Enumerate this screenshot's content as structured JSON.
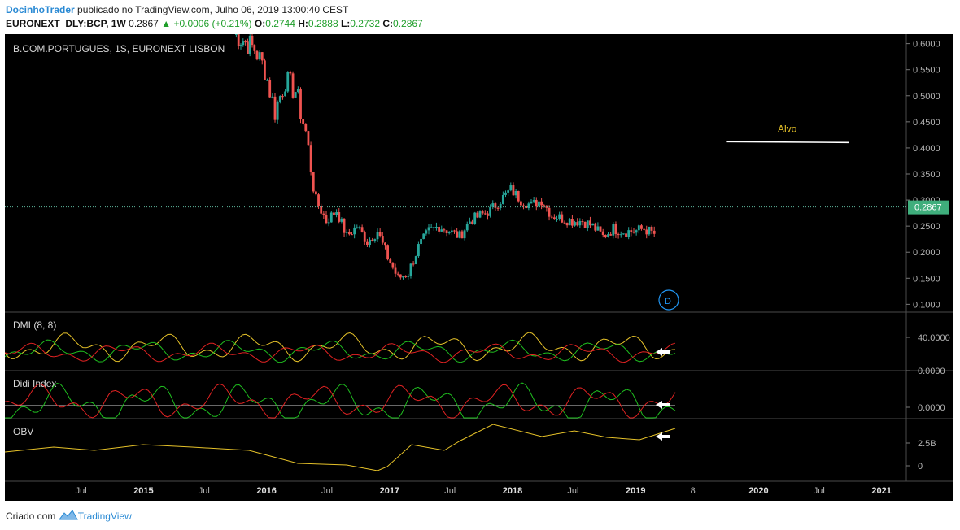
{
  "header": {
    "author": "DocinhoTrader",
    "published": "publicado no TradingView.com, Julho 06, 2019 13:00:40 CEST",
    "symbol": "EURONEXT_DLY:BCP, 1W",
    "last": "0.2867",
    "change": "+0.0006 (+0.21%)",
    "o_label": "O:",
    "o": "0.2744",
    "h_label": "H:",
    "h": "0.2888",
    "l_label": "L:",
    "l": "0.2732",
    "c_label": "C:",
    "c": "0.2867"
  },
  "footer": {
    "created_with": "Criado com",
    "brand": "TradingView"
  },
  "colors": {
    "up": "#26a69a",
    "down": "#ef5350",
    "yellow": "#e6c229",
    "green": "#1fbf1f",
    "red": "#d11",
    "blue": "#2196f3",
    "axis_text": "#b5b5b5",
    "price_tag": "#3fae7c"
  },
  "chart_data": {
    "type": "candlestick",
    "title": "B.COM.PORTUGUES, 1S, EURONEXT LISBON",
    "x_ticks": [
      "Jul",
      "2015",
      "Jul",
      "2016",
      "Jul",
      "2017",
      "Jul",
      "2018",
      "Jul",
      "2019",
      "8",
      "2020",
      "Jul",
      "2021"
    ],
    "price_axis": {
      "ticks": [
        "0.6000",
        "0.5500",
        "0.5000",
        "0.4500",
        "0.4000",
        "0.3500",
        "0.3000",
        "0.2500",
        "0.2000",
        "0.1500",
        "0.1000"
      ],
      "range": [
        0.085,
        0.615
      ]
    },
    "last_price": "0.2867",
    "price_path": [
      [
        "2015-10",
        0.62
      ],
      [
        "2015-12",
        0.59
      ],
      [
        "2016-01",
        0.55
      ],
      [
        "2016-02",
        0.47
      ],
      [
        "2016-03",
        0.53
      ],
      [
        "2016-04",
        0.51
      ],
      [
        "2016-05",
        0.43
      ],
      [
        "2016-06",
        0.3
      ],
      [
        "2016-07",
        0.26
      ],
      [
        "2016-08",
        0.28
      ],
      [
        "2016-09",
        0.23
      ],
      [
        "2016-10",
        0.25
      ],
      [
        "2016-11",
        0.22
      ],
      [
        "2016-12",
        0.24
      ],
      [
        "2017-01",
        0.19
      ],
      [
        "2017-02",
        0.15
      ],
      [
        "2017-03",
        0.16
      ],
      [
        "2017-04",
        0.21
      ],
      [
        "2017-05",
        0.24
      ],
      [
        "2017-06",
        0.25
      ],
      [
        "2017-07",
        0.24
      ],
      [
        "2017-08",
        0.23
      ],
      [
        "2017-09",
        0.26
      ],
      [
        "2017-10",
        0.27
      ],
      [
        "2017-11",
        0.28
      ],
      [
        "2017-12",
        0.3
      ],
      [
        "2018-01",
        0.32
      ],
      [
        "2018-02",
        0.3
      ],
      [
        "2018-03",
        0.29
      ],
      [
        "2018-04",
        0.3
      ],
      [
        "2018-05",
        0.27
      ],
      [
        "2018-06",
        0.265
      ],
      [
        "2018-07",
        0.26
      ],
      [
        "2018-08",
        0.26
      ],
      [
        "2018-09",
        0.25
      ],
      [
        "2018-10",
        0.23
      ],
      [
        "2018-11",
        0.245
      ],
      [
        "2018-12",
        0.24
      ],
      [
        "2019-01",
        0.24
      ],
      [
        "2019-02",
        0.245
      ],
      [
        "2019-03",
        0.235
      ],
      [
        "2019-04",
        0.25
      ],
      [
        "2019-05",
        0.255
      ],
      [
        "2019-06",
        0.265
      ],
      [
        "2019-07",
        0.2867
      ]
    ],
    "annotations": [
      {
        "text": "Alvo",
        "price": 0.415,
        "from": "2019-10",
        "to": "2020-10"
      }
    ],
    "event_marker": "D",
    "indicators": [
      {
        "name": "DMI (8, 8)",
        "axis_ticks": [
          "40.0000",
          "0.0000"
        ]
      },
      {
        "name": "Didi Index",
        "axis_ticks": [
          "0.0000"
        ]
      },
      {
        "name": "OBV",
        "axis_ticks": [
          "2.5B",
          "0"
        ]
      }
    ]
  }
}
